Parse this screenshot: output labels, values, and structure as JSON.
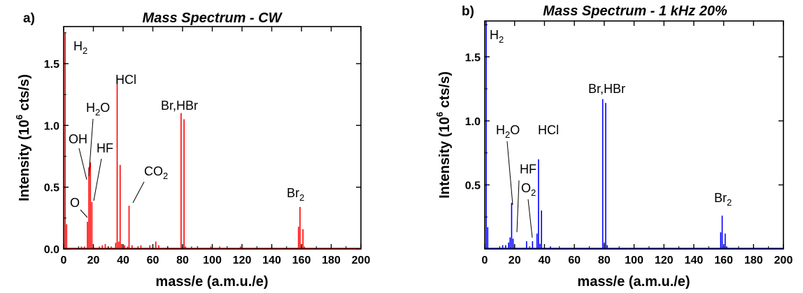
{
  "chart_data": [
    {
      "type": "bar",
      "panel_label": "a)",
      "title": "Mass Spectrum - CW",
      "xlabel": "mass/e (a.m.u./e)",
      "ylabel": "Intensity (10^6 cts/s)",
      "ylabel_parts": {
        "pre": "Intensity (10",
        "sup": "6",
        "post": " cts/s)"
      },
      "xlim": [
        0,
        200
      ],
      "ylim": [
        0,
        1.8
      ],
      "xticks": [
        "0",
        "20",
        "40",
        "60",
        "80",
        "100",
        "120",
        "140",
        "160",
        "180",
        "200"
      ],
      "yticks": [
        "0.0",
        "0.5",
        "1.0",
        "1.5"
      ],
      "color": "#ff0000",
      "grid": false,
      "x": [
        1,
        2,
        12,
        14,
        16,
        17,
        18,
        19,
        20,
        24,
        26,
        28,
        30,
        32,
        35,
        36,
        37,
        38,
        39,
        41,
        43,
        44,
        46,
        52,
        58,
        62,
        64,
        70,
        79,
        80,
        81,
        82,
        86,
        99,
        105,
        119,
        140,
        158,
        159,
        160,
        161,
        162,
        170
      ],
      "values": [
        1.75,
        0.2,
        0.02,
        0.02,
        0.22,
        0.66,
        0.7,
        0.38,
        0.02,
        0.02,
        0.03,
        0.04,
        0.02,
        0.02,
        0.05,
        1.39,
        0.06,
        0.68,
        0.04,
        0.03,
        0.02,
        0.35,
        0.03,
        0.03,
        0.03,
        0.06,
        0.03,
        0.02,
        1.1,
        0.02,
        1.05,
        0.02,
        0.02,
        0.02,
        0.02,
        0.02,
        0.02,
        0.18,
        0.34,
        0.02,
        0.16,
        0.02,
        0.01
      ],
      "annotations": [
        {
          "text": "H",
          "sub": "2"
        },
        {
          "text": "HCl",
          "sub": ""
        },
        {
          "text": "H",
          "sub": "2",
          "tail": "O"
        },
        {
          "text": "Br,HBr",
          "sub": ""
        },
        {
          "text": "OH",
          "sub": ""
        },
        {
          "text": "HF",
          "sub": ""
        },
        {
          "text": "CO",
          "sub": "2"
        },
        {
          "text": "O",
          "sub": ""
        },
        {
          "text": "Br",
          "sub": "2"
        }
      ]
    },
    {
      "type": "bar",
      "panel_label": "b)",
      "title": "Mass Spectrum - 1 kHz 20%",
      "xlabel": "mass/e (a.m.u./e)",
      "ylabel": "Intensity (10^6 cts/s)",
      "ylabel_parts": {
        "pre": "Intensity (10",
        "sup": "6",
        "post": " cts/s)"
      },
      "xlim": [
        0,
        200
      ],
      "ylim": [
        0,
        1.78
      ],
      "xticks": [
        "0",
        "20",
        "40",
        "60",
        "80",
        "100",
        "120",
        "140",
        "160",
        "180",
        "200"
      ],
      "yticks": [
        "0.5",
        "1.0",
        "1.5"
      ],
      "color": "#0000ff",
      "grid": false,
      "x": [
        1,
        2,
        12,
        14,
        16,
        17,
        18,
        19,
        20,
        28,
        32,
        35,
        36,
        37,
        38,
        44,
        79,
        80,
        81,
        82,
        158,
        159,
        160,
        161,
        162
      ],
      "values": [
        1.78,
        0.17,
        0.03,
        0.03,
        0.05,
        0.09,
        0.36,
        0.08,
        0.03,
        0.06,
        0.06,
        0.12,
        0.7,
        0.04,
        0.3,
        0.02,
        1.17,
        0.05,
        1.14,
        0.03,
        0.13,
        0.26,
        0.02,
        0.12,
        0.02
      ],
      "annotations": [
        {
          "text": "H",
          "sub": "2"
        },
        {
          "text": "Br,HBr",
          "sub": ""
        },
        {
          "text": "H",
          "sub": "2",
          "tail": "O"
        },
        {
          "text": "HCl",
          "sub": ""
        },
        {
          "text": "HF",
          "sub": ""
        },
        {
          "text": "O",
          "sub": "2"
        },
        {
          "text": "Br",
          "sub": "2"
        }
      ]
    }
  ]
}
